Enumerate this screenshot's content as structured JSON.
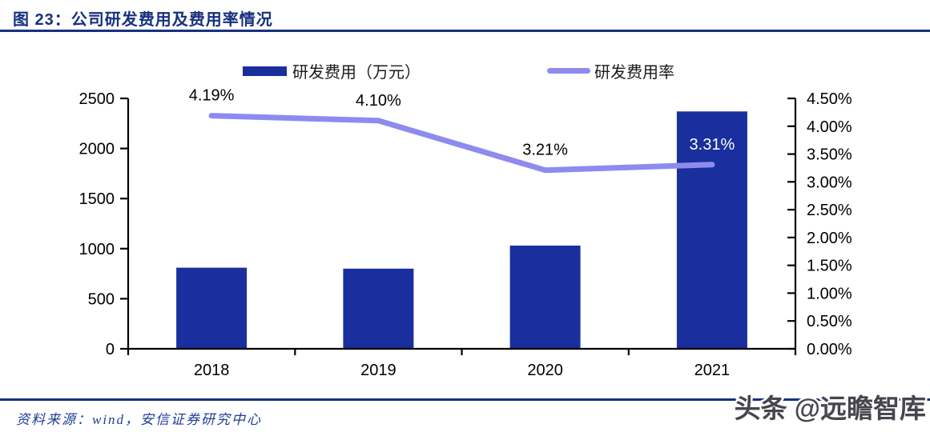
{
  "header": {
    "title": "图 23：公司研发费用及费用率情况"
  },
  "legend": [
    {
      "label": "研发费用（万元）",
      "swatch": "bar-swatch",
      "color": "#1a2f9e"
    },
    {
      "label": "研发费用率",
      "swatch": "line-swatch",
      "color": "#8d8bf0"
    }
  ],
  "chart_data": {
    "type": "bar",
    "subtype": "bar+line combo",
    "title": "公司研发费用及费用率情况",
    "categories": [
      "2018",
      "2019",
      "2020",
      "2021"
    ],
    "series": [
      {
        "name": "研发费用（万元）",
        "type": "bar",
        "axis": "left",
        "color": "#1a2f9e",
        "values": [
          810,
          800,
          1030,
          2370
        ]
      },
      {
        "name": "研发费用率",
        "type": "line",
        "axis": "right",
        "color": "#8d8bf0",
        "values": [
          4.19,
          4.1,
          3.21,
          3.31
        ],
        "point_labels": [
          {
            "text": "4.19%",
            "color": "#000000"
          },
          {
            "text": "4.10%",
            "color": "#000000"
          },
          {
            "text": "3.21%",
            "color": "#000000"
          },
          {
            "text": "3.31%",
            "color": "#ffffff"
          }
        ]
      }
    ],
    "left_axis": {
      "min": 0,
      "max": 2500,
      "step": 500
    },
    "right_axis": {
      "min": 0,
      "max": 4.5,
      "step": 0.5,
      "decimals": 2,
      "suffix": "%"
    },
    "grid": false,
    "legend_position": "top"
  },
  "footer": {
    "source": "资料来源：wind，安信证券研究中心"
  },
  "watermark": {
    "text": "头条 @远瞻智库"
  }
}
